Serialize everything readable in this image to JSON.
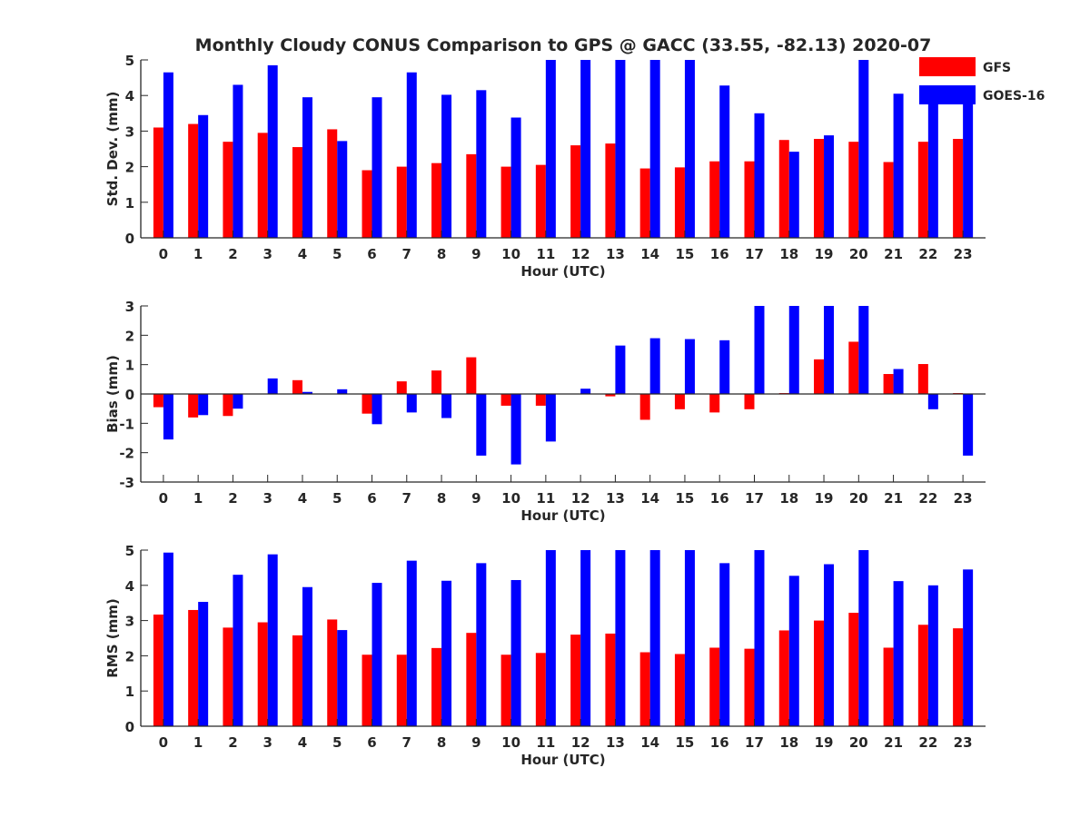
{
  "title": "Monthly Cloudy CONUS Comparison to GPS @ GACC (33.55, -82.13) 2020-07",
  "colors": {
    "GFS": "#ff0000",
    "GOES-16": "#0000ff"
  },
  "legend": {
    "placement": "top-right",
    "entries": [
      "GFS",
      "GOES-16"
    ]
  },
  "chart_data": [
    {
      "type": "bar",
      "xlabel": "Hour (UTC)",
      "ylabel": "Std. Dev. (mm)",
      "ylim": [
        0,
        5
      ],
      "yticks": [
        0,
        1,
        2,
        3,
        4,
        5
      ],
      "categories": [
        "0",
        "1",
        "2",
        "3",
        "4",
        "5",
        "6",
        "7",
        "8",
        "9",
        "10",
        "11",
        "12",
        "13",
        "14",
        "15",
        "16",
        "17",
        "18",
        "19",
        "20",
        "21",
        "22",
        "23"
      ],
      "series": [
        {
          "name": "GFS",
          "values": [
            3.1,
            3.2,
            2.7,
            2.95,
            2.55,
            3.05,
            1.9,
            2.0,
            2.1,
            2.35,
            2.0,
            2.05,
            2.6,
            2.65,
            1.95,
            1.98,
            2.15,
            2.15,
            2.75,
            2.78,
            2.7,
            2.13,
            2.7,
            2.78
          ]
        },
        {
          "name": "GOES-16",
          "values": [
            4.65,
            3.45,
            4.3,
            4.85,
            3.95,
            2.72,
            3.95,
            4.65,
            4.02,
            4.15,
            3.38,
            5.0,
            5.0,
            5.0,
            5.0,
            5.0,
            4.28,
            3.5,
            2.42,
            2.88,
            5.0,
            4.05,
            3.97,
            3.97
          ]
        }
      ]
    },
    {
      "type": "bar",
      "xlabel": "Hour (UTC)",
      "ylabel": "Bias (mm)",
      "ylim": [
        -3,
        3
      ],
      "yticks": [
        -3,
        -2,
        -1,
        0,
        1,
        2,
        3
      ],
      "categories": [
        "0",
        "1",
        "2",
        "3",
        "4",
        "5",
        "6",
        "7",
        "8",
        "9",
        "10",
        "11",
        "12",
        "13",
        "14",
        "15",
        "16",
        "17",
        "18",
        "19",
        "20",
        "21",
        "22",
        "23"
      ],
      "series": [
        {
          "name": "GFS",
          "values": [
            -0.45,
            -0.8,
            -0.75,
            0.0,
            0.47,
            0.0,
            -0.67,
            0.43,
            0.8,
            1.25,
            -0.4,
            -0.4,
            0.0,
            -0.08,
            -0.88,
            -0.52,
            -0.63,
            -0.52,
            0.03,
            1.18,
            1.78,
            0.68,
            1.02,
            0.03
          ]
        },
        {
          "name": "GOES-16",
          "values": [
            -1.55,
            -0.72,
            -0.5,
            0.53,
            0.07,
            0.16,
            -1.03,
            -0.63,
            -0.82,
            -2.1,
            -2.4,
            -1.62,
            0.18,
            1.65,
            1.9,
            1.87,
            1.83,
            3.0,
            3.0,
            3.0,
            3.0,
            0.85,
            -0.52,
            -2.1
          ]
        }
      ]
    },
    {
      "type": "bar",
      "xlabel": "Hour (UTC)",
      "ylabel": "RMS (mm)",
      "ylim": [
        0,
        5
      ],
      "yticks": [
        0,
        1,
        2,
        3,
        4,
        5
      ],
      "categories": [
        "0",
        "1",
        "2",
        "3",
        "4",
        "5",
        "6",
        "7",
        "8",
        "9",
        "10",
        "11",
        "12",
        "13",
        "14",
        "15",
        "16",
        "17",
        "18",
        "19",
        "20",
        "21",
        "22",
        "23"
      ],
      "series": [
        {
          "name": "GFS",
          "values": [
            3.17,
            3.3,
            2.8,
            2.95,
            2.58,
            3.03,
            2.03,
            2.03,
            2.22,
            2.65,
            2.03,
            2.08,
            2.6,
            2.63,
            2.1,
            2.05,
            2.23,
            2.2,
            2.72,
            3.0,
            3.22,
            2.23,
            2.88,
            2.78
          ]
        },
        {
          "name": "GOES-16",
          "values": [
            4.93,
            3.53,
            4.3,
            4.88,
            3.95,
            2.73,
            4.07,
            4.7,
            4.13,
            4.63,
            4.15,
            5.0,
            5.0,
            5.0,
            5.0,
            5.0,
            4.63,
            5.0,
            4.27,
            4.6,
            5.0,
            4.12,
            4.0,
            4.45
          ]
        }
      ]
    }
  ]
}
